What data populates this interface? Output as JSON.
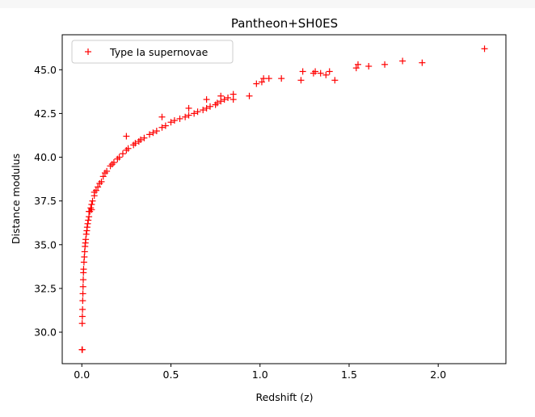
{
  "chart_data": {
    "type": "scatter",
    "title": "Pantheon+SH0ES",
    "xlabel": "Redshift (z)",
    "ylabel": "Distance modulus",
    "xlim": [
      -0.11,
      2.38
    ],
    "ylim": [
      28.2,
      47.0
    ],
    "xticks": [
      0.0,
      0.5,
      1.0,
      1.5,
      2.0
    ],
    "xtick_labels": [
      "0.0",
      "0.5",
      "1.0",
      "1.5",
      "2.0"
    ],
    "yticks": [
      30.0,
      32.5,
      35.0,
      37.5,
      40.0,
      42.5,
      45.0
    ],
    "ytick_labels": [
      "30.0",
      "32.5",
      "35.0",
      "37.5",
      "40.0",
      "42.5",
      "45.0"
    ],
    "grid": false,
    "legend_position": "upper-left",
    "marker": "+",
    "color": "#ff0000",
    "series": [
      {
        "name": "Type Ia supernovae",
        "points": [
          [
            0.001,
            29.0
          ],
          [
            0.003,
            29.0
          ],
          [
            0.002,
            30.5
          ],
          [
            0.003,
            30.9
          ],
          [
            0.004,
            31.3
          ],
          [
            0.005,
            31.8
          ],
          [
            0.006,
            32.2
          ],
          [
            0.007,
            32.6
          ],
          [
            0.008,
            33.0
          ],
          [
            0.009,
            33.4
          ],
          [
            0.01,
            33.6
          ],
          [
            0.012,
            34.0
          ],
          [
            0.014,
            34.3
          ],
          [
            0.016,
            34.6
          ],
          [
            0.018,
            34.9
          ],
          [
            0.02,
            35.1
          ],
          [
            0.022,
            35.3
          ],
          [
            0.025,
            35.6
          ],
          [
            0.028,
            35.8
          ],
          [
            0.03,
            36.0
          ],
          [
            0.033,
            36.2
          ],
          [
            0.036,
            36.4
          ],
          [
            0.04,
            36.6
          ],
          [
            0.045,
            36.9
          ],
          [
            0.05,
            37.1
          ],
          [
            0.055,
            37.3
          ],
          [
            0.06,
            37.5
          ],
          [
            0.07,
            37.8
          ],
          [
            0.08,
            38.1
          ],
          [
            0.09,
            38.3
          ],
          [
            0.1,
            38.5
          ],
          [
            0.12,
            38.9
          ],
          [
            0.14,
            39.2
          ],
          [
            0.16,
            39.5
          ],
          [
            0.18,
            39.7
          ],
          [
            0.2,
            39.9
          ],
          [
            0.23,
            40.2
          ],
          [
            0.26,
            40.5
          ],
          [
            0.29,
            40.7
          ],
          [
            0.32,
            40.9
          ],
          [
            0.35,
            41.1
          ],
          [
            0.38,
            41.3
          ],
          [
            0.42,
            41.5
          ],
          [
            0.45,
            41.7
          ],
          [
            0.5,
            42.0
          ],
          [
            0.55,
            42.2
          ],
          [
            0.6,
            42.4
          ],
          [
            0.65,
            42.6
          ],
          [
            0.7,
            42.8
          ],
          [
            0.75,
            43.0
          ],
          [
            0.78,
            43.2
          ],
          [
            0.8,
            43.3
          ],
          [
            0.85,
            43.6
          ],
          [
            0.94,
            43.5
          ],
          [
            0.98,
            44.2
          ],
          [
            1.01,
            44.3
          ],
          [
            1.02,
            44.5
          ],
          [
            1.05,
            44.5
          ],
          [
            1.12,
            44.5
          ],
          [
            1.23,
            44.4
          ],
          [
            1.24,
            44.9
          ],
          [
            1.3,
            44.8
          ],
          [
            1.31,
            44.9
          ],
          [
            1.34,
            44.8
          ],
          [
            1.37,
            44.7
          ],
          [
            1.39,
            44.9
          ],
          [
            1.42,
            44.4
          ],
          [
            1.54,
            45.1
          ],
          [
            1.55,
            45.3
          ],
          [
            1.61,
            45.2
          ],
          [
            1.7,
            45.3
          ],
          [
            1.8,
            45.5
          ],
          [
            1.91,
            45.4
          ],
          [
            2.26,
            46.2
          ],
          [
            0.04,
            36.9
          ],
          [
            0.055,
            37.0
          ],
          [
            0.07,
            38.0
          ],
          [
            0.11,
            38.6
          ],
          [
            0.13,
            39.1
          ],
          [
            0.17,
            39.6
          ],
          [
            0.21,
            40.0
          ],
          [
            0.25,
            40.4
          ],
          [
            0.3,
            40.8
          ],
          [
            0.33,
            41.0
          ],
          [
            0.4,
            41.4
          ],
          [
            0.47,
            41.8
          ],
          [
            0.52,
            42.1
          ],
          [
            0.58,
            42.3
          ],
          [
            0.63,
            42.5
          ],
          [
            0.68,
            42.7
          ],
          [
            0.72,
            42.9
          ],
          [
            0.76,
            43.1
          ],
          [
            0.82,
            43.4
          ],
          [
            0.85,
            43.3
          ],
          [
            0.25,
            41.2
          ],
          [
            0.45,
            42.3
          ],
          [
            0.6,
            42.8
          ],
          [
            0.7,
            43.3
          ],
          [
            0.78,
            43.5
          ]
        ]
      }
    ]
  }
}
